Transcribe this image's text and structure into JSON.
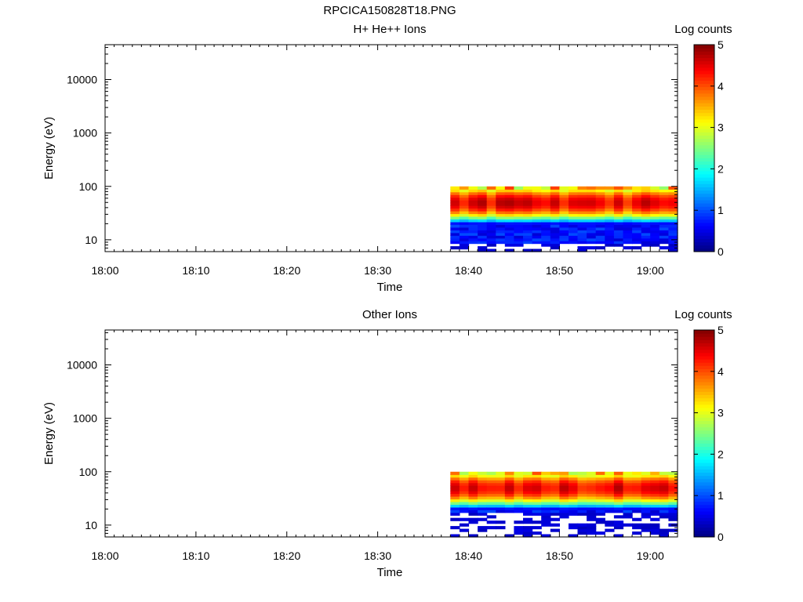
{
  "figure_title": "RPCICA150828T18.PNG",
  "chart_data": [
    {
      "type": "heatmap",
      "title": "H+ He++ Ions",
      "xlabel": "Time",
      "ylabel": "Energy (eV)",
      "x_ticks": [
        "18:00",
        "18:10",
        "18:20",
        "18:30",
        "18:40",
        "18:50",
        "19:00"
      ],
      "y_ticks": [
        "10",
        "100",
        "1000",
        "10000"
      ],
      "y_scale": "log",
      "xlim": [
        "18:00",
        "19:03"
      ],
      "ylim": [
        6,
        45000
      ],
      "colorbar": {
        "label": "Log counts",
        "ticks": [
          "0",
          "1",
          "2",
          "3",
          "4",
          "5"
        ],
        "range": [
          0,
          5
        ],
        "colormap": "jet"
      },
      "data_time_range": [
        "18:38",
        "19:03"
      ],
      "band": {
        "energy_range_eV": [
          10,
          100
        ],
        "peak_energy_eV": 50,
        "peak_log_counts": 4.8
      },
      "sparse_low_energy_counts": {
        "energy_range_eV": [
          6,
          25
        ],
        "log_counts": 0.3
      }
    },
    {
      "type": "heatmap",
      "title": "Other Ions",
      "xlabel": "Time",
      "ylabel": "Energy (eV)",
      "x_ticks": [
        "18:00",
        "18:10",
        "18:20",
        "18:30",
        "18:40",
        "18:50",
        "19:00"
      ],
      "y_ticks": [
        "10",
        "100",
        "1000",
        "10000"
      ],
      "y_scale": "log",
      "xlim": [
        "18:00",
        "19:03"
      ],
      "ylim": [
        6,
        45000
      ],
      "colorbar": {
        "label": "Log counts",
        "ticks": [
          "0",
          "1",
          "2",
          "3",
          "4",
          "5"
        ],
        "range": [
          0,
          5
        ],
        "colormap": "jet"
      },
      "data_time_range": [
        "18:38",
        "19:03"
      ],
      "band": {
        "energy_range_eV": [
          20,
          100
        ],
        "peak_energy_eV": 50,
        "peak_log_counts": 4.8
      },
      "sparse_low_energy_counts": {
        "energy_range_eV": [
          6,
          25
        ],
        "log_counts": 0.3
      }
    }
  ]
}
